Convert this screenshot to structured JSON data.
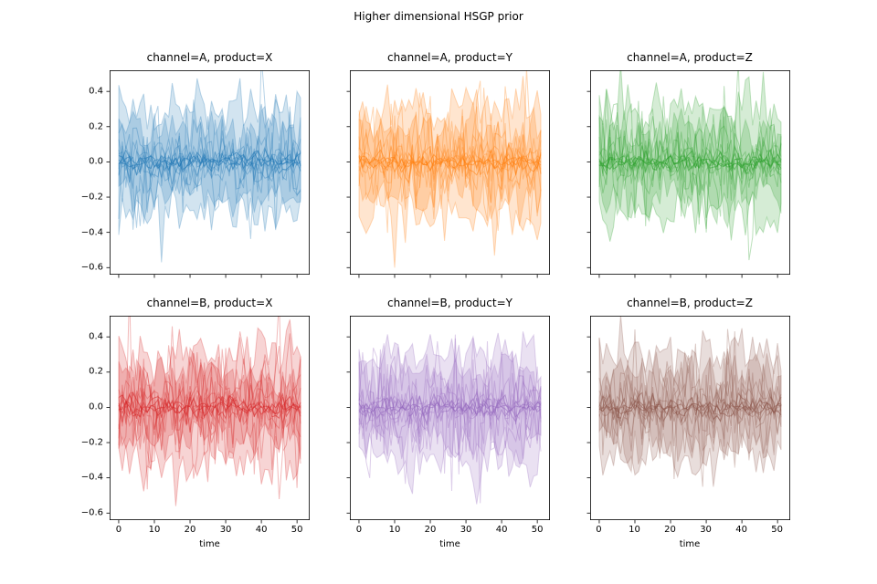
{
  "figure": {
    "background": "#ffffff",
    "suptitle": "Higher dimensional HSGP prior"
  },
  "chart_data": {
    "type": "line",
    "title": "Higher dimensional HSGP prior",
    "xlabel": "time",
    "ylabel": "",
    "grid": false,
    "legend": null,
    "x_ticks": [
      0,
      10,
      20,
      30,
      40,
      50
    ],
    "y_ticks": [
      0.4,
      0.2,
      0.0,
      -0.2,
      -0.4,
      -0.6
    ],
    "xlim": [
      -2.55,
      53.55
    ],
    "ylim": [
      -0.64,
      0.52
    ],
    "n_points": 52,
    "x_start": 0,
    "x_end": 51,
    "subplots": [
      {
        "row": 0,
        "col": 0,
        "title": "channel=A, product=X",
        "color": "#1f77b4",
        "seed": 101,
        "spike": {
          "t": 12,
          "y": -0.57
        }
      },
      {
        "row": 0,
        "col": 1,
        "title": "channel=A, product=Y",
        "color": "#ff7f0e",
        "seed": 202,
        "spike": {
          "t": 10,
          "y": -0.6
        }
      },
      {
        "row": 0,
        "col": 2,
        "title": "channel=A, product=Z",
        "color": "#2ca02c",
        "seed": 303,
        "spike": null
      },
      {
        "row": 1,
        "col": 0,
        "title": "channel=B, product=X",
        "color": "#d62728",
        "seed": 404,
        "spike": {
          "t": 16,
          "y": -0.56
        }
      },
      {
        "row": 1,
        "col": 1,
        "title": "channel=B, product=Y",
        "color": "#9467bd",
        "seed": 505,
        "spike": {
          "t": 33,
          "y": -0.55
        }
      },
      {
        "row": 1,
        "col": 2,
        "title": "channel=B, product=Z",
        "color": "#8c564b",
        "seed": 606,
        "spike": null
      }
    ],
    "band_params": [
      {
        "base": 0.3,
        "jitter": 0.11,
        "noise": 0.05,
        "fill_alpha": 0.2,
        "edge_alpha": 0.28
      },
      {
        "base": 0.19,
        "jitter": 0.09,
        "noise": 0.05,
        "fill_alpha": 0.22,
        "edge_alpha": 0.22
      }
    ],
    "line_params": {
      "count_large": 9,
      "sigma_min": 0.04,
      "sigma_max": 0.22,
      "alpha": 0.32,
      "count_core": 4,
      "core_sigma_min": 0.015,
      "core_sigma_max": 0.04,
      "core_alpha": 0.55,
      "width": 1
    },
    "spine_color": "#000000"
  }
}
